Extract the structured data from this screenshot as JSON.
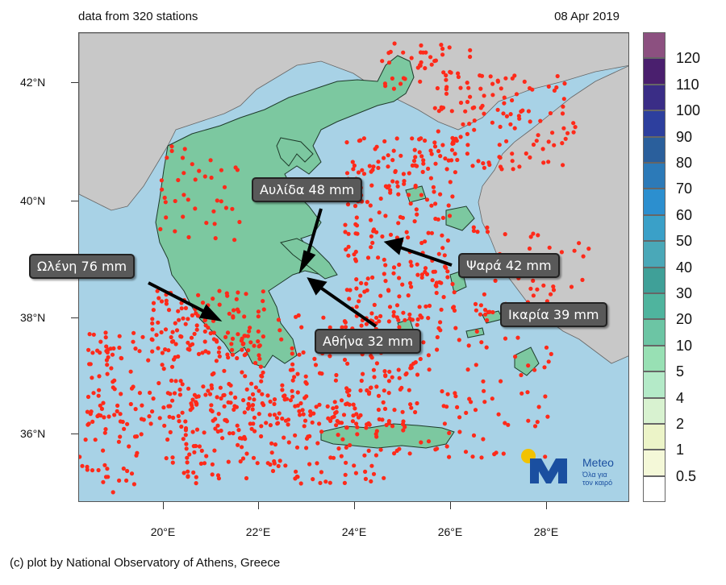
{
  "header": {
    "stations_text": "data from 320 stations",
    "date": "08 Apr 2019"
  },
  "axes": {
    "lat_labels": [
      "42°N",
      "40°N",
      "38°N",
      "36°N"
    ],
    "lon_labels": [
      "20°E",
      "22°E",
      "24°E",
      "26°E",
      "28°E"
    ]
  },
  "legend": {
    "levels": [
      "120",
      "110",
      "100",
      "90",
      "80",
      "70",
      "60",
      "50",
      "40",
      "30",
      "20",
      "10",
      "5",
      "4",
      "2",
      "1",
      "0.5"
    ],
    "colors": [
      "#8c5080",
      "#4a1f6e",
      "#3a2d86",
      "#2d3f9e",
      "#2a5f9c",
      "#2c7ab8",
      "#2c8fcf",
      "#3aa0c8",
      "#4aa8b8",
      "#3fa098",
      "#4fb49e",
      "#6cc5a4",
      "#98e0b4",
      "#b4eac8",
      "#d8f2d0",
      "#ecf4c8",
      "#f4f8d8",
      "#ffffff"
    ]
  },
  "callouts": {
    "aulida": "Αυλίδα 48 mm",
    "olenh": "Ωλένη 76 mm",
    "psara": "Ψαρά 42 mm",
    "ikaria": "Ικαρία 39 mm",
    "athina": "Αθήνα 32 mm"
  },
  "logo": {
    "name": "Meteo",
    "tagline_1": "Όλα για",
    "tagline_2": "τον καιρό"
  },
  "footer": "(c) plot by National Observatory of Athens, Greece",
  "colors": {
    "sea": "#a8d2e6",
    "land_other": "#c8c8c8",
    "greece_base": "#7cc8a0",
    "lightning": "#ff2a1a"
  }
}
